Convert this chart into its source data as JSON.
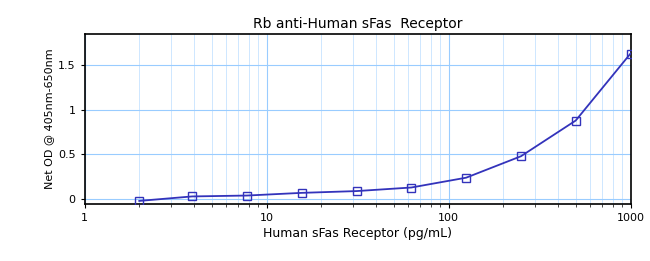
{
  "title": "Rb anti-Human sFas  Receptor",
  "xlabel": "Human sFas Receptor (pg/mL)",
  "ylabel": "Net OD @ 405nm-650nm",
  "xlim_log": [
    1,
    1000
  ],
  "ylim": [
    -0.05,
    1.85
  ],
  "yticks": [
    0,
    0.5,
    1,
    1.5
  ],
  "curve_color": "#3333bb",
  "marker_color": "#3333bb",
  "background_color": "#ffffff",
  "grid_major_color": "#99ccff",
  "grid_minor_color": "#bbddff",
  "data_x": [
    2.0,
    3.9,
    7.8,
    15.6,
    31.25,
    62.5,
    125.0,
    250.0,
    500.0,
    1000.0
  ],
  "data_y": [
    -0.02,
    0.03,
    0.04,
    0.07,
    0.09,
    0.13,
    0.24,
    0.48,
    0.88,
    1.63
  ],
  "title_fontsize": 10,
  "xlabel_fontsize": 9,
  "ylabel_fontsize": 8,
  "tick_fontsize": 8
}
